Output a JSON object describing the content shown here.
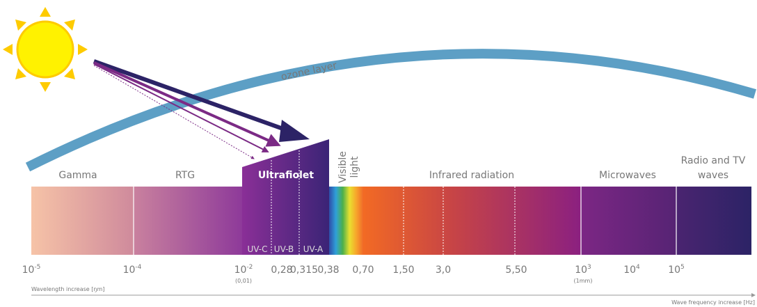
{
  "ozone_label": "ozone layer",
  "bands": [
    {
      "lines": [
        "Gamma"
      ]
    },
    {
      "lines": [
        "RTG"
      ]
    },
    {
      "lines": [
        "Ultrafiolet"
      ]
    },
    {
      "lines": [
        "Visible",
        "light"
      ]
    },
    {
      "lines": [
        "Infrared radiation"
      ]
    },
    {
      "lines": [
        "Microwaves"
      ]
    },
    {
      "lines": [
        "Radio and TV",
        "waves"
      ]
    }
  ],
  "uv_bands": [
    "UV-C",
    "UV-B",
    "UV-A"
  ],
  "ticks": [
    {
      "text": "10",
      "sup": "-5"
    },
    {
      "text": "10",
      "sup": "-4"
    },
    {
      "text": "10",
      "sup": "-2",
      "note": "(0,01)"
    },
    {
      "text": "0,28"
    },
    {
      "text": "0,315"
    },
    {
      "text": "0,38"
    },
    {
      "text": "0,70"
    },
    {
      "text": "1,50"
    },
    {
      "text": "3,0"
    },
    {
      "text": "5,50"
    },
    {
      "text": "10",
      "sup": "3",
      "note": "(1mm)"
    },
    {
      "text": "10",
      "sup": "4"
    },
    {
      "text": "10",
      "sup": "5"
    }
  ],
  "wavelength_label": "Wavelength increase [ŋm]",
  "frequency_label": "Wave frequency increase [Hz]"
}
